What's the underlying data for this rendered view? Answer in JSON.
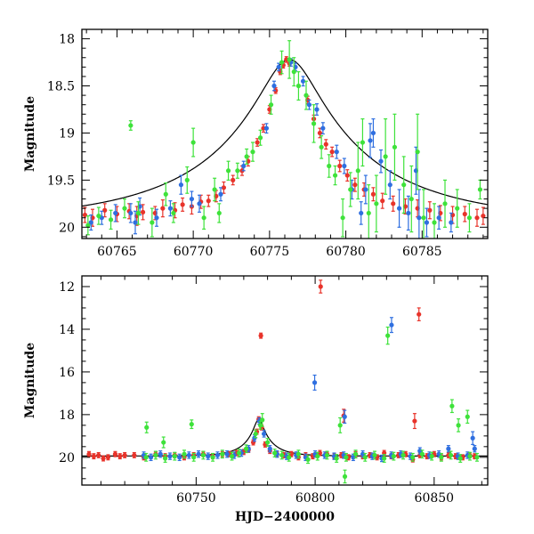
{
  "chart_data": [
    {
      "type": "scatter",
      "panel": "top",
      "xlabel": "",
      "ylabel": "Magnitude",
      "xlim": [
        60762.7,
        60789.3
      ],
      "ylim": [
        20.12,
        17.9
      ],
      "y_inverted": true,
      "x_ticks": [
        60765,
        60770,
        60775,
        60780,
        60785
      ],
      "x_tick_labels": [
        "60765",
        "60770",
        "60775",
        "60780",
        "60785"
      ],
      "y_ticks": [
        18,
        18.5,
        19,
        19.5,
        20
      ],
      "y_tick_labels": [
        "18",
        "18.5",
        "19",
        "19.5",
        "20"
      ],
      "model": {
        "t0": 60776.3,
        "peak_mag": 18.22,
        "base_mag": 19.94,
        "u0": 0.155,
        "tE": 11.5,
        "x_range": [
          60762.7,
          60789.3
        ]
      },
      "series": [
        {
          "color": "#e8332a",
          "x": [
            60762.9,
            60763.4,
            60764.2,
            60765.0,
            60765.8,
            60766.3,
            60766.7,
            60767.5,
            60768.0,
            60768.8,
            60769.3,
            60769.9,
            60770.5,
            60771.0,
            60771.5,
            60772.0,
            60772.6,
            60773.2,
            60773.6,
            60774.2,
            60774.6,
            60775.0,
            60775.4,
            60775.7,
            60775.9,
            60776.1,
            60776.3,
            60777.5,
            60777.9,
            60778.3,
            60778.7,
            60779.1,
            60779.6,
            60780.1,
            60780.6,
            60781.2,
            60781.8,
            60782.4,
            60783.1,
            60783.9,
            60784.7,
            60785.5,
            60786.2,
            60787.0,
            60787.8,
            60788.6,
            60789.0
          ],
          "y": [
            19.87,
            19.9,
            19.82,
            19.86,
            19.83,
            19.88,
            19.84,
            19.85,
            19.8,
            19.82,
            19.76,
            19.78,
            19.73,
            19.72,
            19.67,
            19.58,
            19.5,
            19.4,
            19.3,
            19.1,
            18.95,
            18.75,
            18.55,
            18.35,
            18.28,
            18.22,
            18.26,
            18.65,
            18.85,
            19.0,
            19.12,
            19.2,
            19.35,
            19.45,
            19.55,
            19.6,
            19.65,
            19.72,
            19.75,
            19.78,
            19.8,
            19.82,
            19.85,
            19.87,
            19.86,
            19.9,
            19.88
          ],
          "yerr": [
            0.08,
            0.09,
            0.07,
            0.08,
            0.08,
            0.1,
            0.08,
            0.07,
            0.09,
            0.08,
            0.07,
            0.08,
            0.07,
            0.06,
            0.06,
            0.06,
            0.05,
            0.05,
            0.05,
            0.04,
            0.04,
            0.04,
            0.03,
            0.03,
            0.03,
            0.03,
            0.03,
            0.04,
            0.04,
            0.05,
            0.05,
            0.05,
            0.06,
            0.06,
            0.07,
            0.07,
            0.07,
            0.08,
            0.08,
            0.08,
            0.09,
            0.09,
            0.08,
            0.09,
            0.08,
            0.09,
            0.09
          ]
        },
        {
          "color": "#2f6fe0",
          "x": [
            60763.3,
            60764.0,
            60764.9,
            60765.9,
            60766.2,
            60766.5,
            60767.6,
            60768.5,
            60769.2,
            60769.9,
            60770.4,
            60771.8,
            60773.3,
            60774.8,
            60775.3,
            60775.6,
            60776.4,
            60776.7,
            60777.2,
            60777.6,
            60778.1,
            60778.5,
            60779.4,
            60779.9,
            60780.4,
            60781.0,
            60781.3,
            60781.6,
            60781.8,
            60782.3,
            60782.9,
            60783.5,
            60784.1,
            60784.6,
            60784.8,
            60785.3,
            60786.1,
            60786.9
          ],
          "y": [
            19.95,
            19.9,
            19.85,
            19.85,
            19.95,
            19.78,
            19.9,
            19.8,
            19.55,
            19.7,
            19.75,
            19.65,
            19.35,
            18.95,
            18.5,
            18.3,
            18.25,
            18.3,
            18.45,
            18.7,
            18.75,
            18.95,
            19.2,
            19.35,
            19.6,
            19.85,
            19.6,
            19.08,
            19.0,
            19.3,
            19.55,
            19.8,
            19.85,
            19.4,
            19.9,
            19.95,
            19.9,
            19.95
          ],
          "yerr": [
            0.08,
            0.07,
            0.09,
            0.1,
            0.12,
            0.09,
            0.09,
            0.08,
            0.1,
            0.08,
            0.09,
            0.07,
            0.05,
            0.05,
            0.05,
            0.04,
            0.04,
            0.04,
            0.05,
            0.05,
            0.06,
            0.06,
            0.07,
            0.08,
            0.1,
            0.12,
            0.15,
            0.18,
            0.15,
            0.12,
            0.15,
            0.2,
            0.18,
            0.25,
            0.3,
            0.15,
            0.12,
            0.1
          ]
        },
        {
          "color": "#3ee23a",
          "x": [
            60763.1,
            60763.8,
            60764.6,
            60765.5,
            60765.9,
            60766.4,
            60767.3,
            60768.2,
            60768.7,
            60769.6,
            60770.0,
            60770.7,
            60771.4,
            60771.7,
            60772.3,
            60772.9,
            60773.5,
            60773.9,
            60774.4,
            60775.1,
            60775.8,
            60776.3,
            60776.6,
            60776.9,
            60777.4,
            60777.9,
            60778.4,
            60778.9,
            60779.3,
            60779.8,
            60780.3,
            60780.8,
            60781.1,
            60781.5,
            60782.0,
            60782.6,
            60783.2,
            60783.8,
            60784.3,
            60784.7,
            60785.1,
            60785.8,
            60786.5,
            60787.3,
            60788.1,
            60788.8
          ],
          "y": [
            19.98,
            19.88,
            19.92,
            19.8,
            18.92,
            19.85,
            19.95,
            19.65,
            19.85,
            19.5,
            19.1,
            19.9,
            19.6,
            19.85,
            19.4,
            19.4,
            19.25,
            19.2,
            19.05,
            18.7,
            18.25,
            18.22,
            18.35,
            18.5,
            18.6,
            18.9,
            19.15,
            19.35,
            19.45,
            19.9,
            19.6,
            19.4,
            19.1,
            19.85,
            19.75,
            19.25,
            19.15,
            19.55,
            19.7,
            19.2,
            19.9,
            19.95,
            19.75,
            19.8,
            19.9,
            19.6
          ],
          "yerr": [
            0.1,
            0.09,
            0.1,
            0.1,
            0.05,
            0.12,
            0.15,
            0.12,
            0.1,
            0.14,
            0.15,
            0.12,
            0.12,
            0.1,
            0.1,
            0.08,
            0.08,
            0.1,
            0.08,
            0.1,
            0.12,
            0.2,
            0.15,
            0.15,
            0.15,
            0.2,
            0.12,
            0.12,
            0.1,
            0.2,
            0.18,
            0.3,
            0.25,
            0.3,
            0.3,
            0.4,
            0.35,
            0.3,
            0.35,
            0.4,
            0.3,
            0.2,
            0.25,
            0.2,
            0.15,
            0.1
          ]
        }
      ]
    },
    {
      "type": "scatter",
      "panel": "bottom",
      "xlabel": "HJD−2400000",
      "ylabel": "Magnitude",
      "xlim": [
        60702.0,
        60872.5
      ],
      "ylim": [
        21.3,
        11.5
      ],
      "y_inverted": true,
      "x_ticks": [
        60750,
        60800,
        60850
      ],
      "x_tick_labels": [
        "60750",
        "60800",
        "60850"
      ],
      "y_ticks": [
        12,
        14,
        16,
        18,
        20
      ],
      "y_tick_labels": [
        "12",
        "14",
        "16",
        "18",
        "20"
      ],
      "model": {
        "t0": 60776.3,
        "peak_mag": 18.22,
        "base_mag": 19.94,
        "u0": 0.155,
        "tE": 11.5,
        "x_range": [
          60702.0,
          60872.5
        ]
      },
      "series": [
        {
          "color": "#e8332a",
          "x": [
            60705,
            60707,
            60709,
            60711,
            60713,
            60716,
            60718,
            60720,
            60724,
            60728,
            60733,
            60737,
            60741,
            60745,
            60749,
            60753,
            60757,
            60761,
            60764,
            60767,
            60770,
            60772,
            60774,
            60775.5,
            60776.3,
            60777.5,
            60779,
            60781,
            60784,
            60787,
            60790,
            60793,
            60796,
            60799,
            60802,
            60805,
            60808,
            60811,
            60814,
            60817,
            60820,
            60823,
            60826,
            60829,
            60832,
            60835,
            60838,
            60841,
            60844,
            60847,
            60850,
            60853,
            60856,
            60859,
            60862,
            60865,
            60867,
            60777.2,
            60802.3,
            60812.0,
            60841.8,
            60843.6
          ],
          "y": [
            19.85,
            19.95,
            19.9,
            20.05,
            20.0,
            19.85,
            19.95,
            19.9,
            19.9,
            20.0,
            19.85,
            19.95,
            19.9,
            20.0,
            19.9,
            19.85,
            19.95,
            19.85,
            19.85,
            19.8,
            19.75,
            19.65,
            19.3,
            18.8,
            18.22,
            18.6,
            19.4,
            19.7,
            19.85,
            19.9,
            19.85,
            20.0,
            19.9,
            19.95,
            19.8,
            19.85,
            19.95,
            19.9,
            20.0,
            19.85,
            19.95,
            19.9,
            20.0,
            19.8,
            19.95,
            19.9,
            19.85,
            20.1,
            19.9,
            19.95,
            19.85,
            20.0,
            19.9,
            19.95,
            20.0,
            19.9,
            19.95,
            14.3,
            12.0,
            18.05,
            18.3,
            13.3
          ],
          "yerr": [
            0.12,
            0.12,
            0.12,
            0.12,
            0.12,
            0.12,
            0.12,
            0.12,
            0.12,
            0.12,
            0.12,
            0.12,
            0.12,
            0.12,
            0.12,
            0.12,
            0.12,
            0.12,
            0.12,
            0.12,
            0.12,
            0.12,
            0.12,
            0.12,
            0.12,
            0.12,
            0.12,
            0.12,
            0.12,
            0.12,
            0.12,
            0.12,
            0.12,
            0.12,
            0.12,
            0.12,
            0.12,
            0.12,
            0.12,
            0.12,
            0.12,
            0.12,
            0.12,
            0.12,
            0.12,
            0.12,
            0.12,
            0.12,
            0.12,
            0.12,
            0.12,
            0.12,
            0.12,
            0.12,
            0.12,
            0.12,
            0.12,
            0.12,
            0.3,
            0.3,
            0.35,
            0.3
          ]
        },
        {
          "color": "#2f6fe0",
          "x": [
            60728,
            60731,
            60735,
            60739,
            60743,
            60747,
            60751,
            60755,
            60759,
            60763,
            60766,
            60769,
            60772,
            60774.5,
            60776.5,
            60778.5,
            60781,
            60784,
            60788,
            60792,
            60796,
            60800,
            60804,
            60808,
            60812,
            60816,
            60820,
            60824,
            60828,
            60832,
            60836,
            60840,
            60844,
            60848,
            60852,
            60856,
            60860,
            60864,
            60867,
            60799.8,
            60812.4,
            60832.1,
            60866.2
          ],
          "y": [
            19.9,
            20.0,
            19.85,
            19.95,
            20.0,
            19.9,
            19.85,
            19.95,
            19.9,
            19.85,
            19.9,
            19.8,
            19.6,
            19.1,
            18.3,
            18.9,
            19.6,
            19.85,
            19.95,
            19.9,
            20.0,
            19.85,
            19.9,
            19.95,
            19.9,
            20.0,
            19.85,
            19.95,
            20.05,
            19.9,
            19.85,
            19.95,
            19.7,
            19.9,
            19.85,
            19.6,
            19.95,
            19.9,
            19.6,
            16.5,
            18.1,
            13.8,
            19.1
          ],
          "yerr": [
            0.15,
            0.15,
            0.15,
            0.15,
            0.15,
            0.15,
            0.15,
            0.15,
            0.15,
            0.15,
            0.15,
            0.15,
            0.15,
            0.15,
            0.15,
            0.15,
            0.15,
            0.15,
            0.15,
            0.15,
            0.15,
            0.15,
            0.15,
            0.15,
            0.15,
            0.15,
            0.15,
            0.15,
            0.15,
            0.15,
            0.15,
            0.15,
            0.15,
            0.15,
            0.15,
            0.15,
            0.15,
            0.15,
            0.15,
            0.35,
            0.3,
            0.35,
            0.3
          ]
        },
        {
          "color": "#3ee23a",
          "x": [
            60729,
            60733,
            60737,
            60741,
            60745,
            60749,
            60753,
            60757,
            60761,
            60765,
            60768,
            60771,
            60775,
            60777,
            60780,
            60783,
            60786,
            60789,
            60793,
            60797,
            60801,
            60805,
            60809,
            60813,
            60817,
            60821,
            60825,
            60829,
            60833,
            60837,
            60841,
            60845,
            60849,
            60853,
            60857,
            60861,
            60865,
            60868,
            60729.2,
            60736.3,
            60748.1,
            60777.8,
            60810.5,
            60830.5,
            60857.5,
            60860.2,
            60864.0,
            60812.5
          ],
          "y": [
            20.0,
            19.9,
            20.05,
            19.95,
            19.85,
            20.0,
            19.9,
            20.0,
            19.85,
            19.95,
            19.8,
            19.6,
            18.9,
            18.5,
            19.3,
            19.8,
            19.9,
            20.0,
            19.85,
            20.1,
            19.95,
            19.9,
            20.05,
            20.0,
            19.85,
            20.0,
            19.9,
            20.05,
            19.95,
            19.9,
            20.0,
            19.85,
            19.95,
            20.0,
            19.9,
            20.05,
            19.95,
            20.0,
            18.6,
            19.3,
            18.45,
            18.25,
            18.5,
            14.3,
            17.6,
            18.5,
            18.1,
            20.9
          ],
          "yerr": [
            0.18,
            0.18,
            0.18,
            0.18,
            0.18,
            0.18,
            0.18,
            0.18,
            0.18,
            0.18,
            0.18,
            0.18,
            0.18,
            0.18,
            0.18,
            0.18,
            0.18,
            0.18,
            0.18,
            0.18,
            0.18,
            0.18,
            0.18,
            0.18,
            0.18,
            0.18,
            0.18,
            0.18,
            0.18,
            0.18,
            0.18,
            0.18,
            0.18,
            0.18,
            0.18,
            0.18,
            0.18,
            0.18,
            0.25,
            0.25,
            0.2,
            0.3,
            0.35,
            0.4,
            0.3,
            0.3,
            0.3,
            0.3
          ]
        }
      ]
    }
  ]
}
